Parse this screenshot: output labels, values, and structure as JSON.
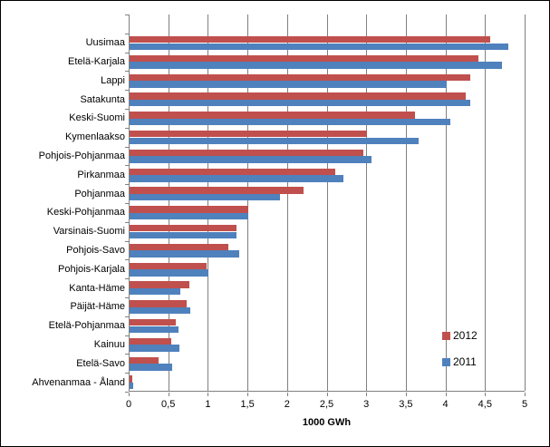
{
  "chart_data": {
    "type": "bar",
    "orientation": "horizontal",
    "title": "",
    "xlabel": "1000 GWh",
    "ylabel": "",
    "xlim": [
      0,
      5
    ],
    "grid": true,
    "legend_position": "inside-right",
    "categories": [
      "Uusimaa",
      "Etelä-Karjala",
      "Lappi",
      "Satakunta",
      "Keski-Suomi",
      "Kymenlaakso",
      "Pohjois-Pohjanmaa",
      "Pirkanmaa",
      "Pohjanmaa",
      "Keski-Pohjanmaa",
      "Varsinais-Suomi",
      "Pohjois-Savo",
      "Pohjois-Karjala",
      "Kanta-Häme",
      "Päijät-Häme",
      "Etelä-Pohjanmaa",
      "Kainuu",
      "Etelä-Savo",
      "Ahvenanmaa - Åland"
    ],
    "series": [
      {
        "name": "2012",
        "color": "#C0504D",
        "values": [
          4.55,
          4.4,
          4.3,
          4.25,
          3.6,
          3.0,
          2.95,
          2.6,
          2.2,
          1.5,
          1.35,
          1.25,
          0.97,
          0.75,
          0.72,
          0.58,
          0.53,
          0.37,
          0.03
        ]
      },
      {
        "name": "2011",
        "color": "#4F81BD",
        "values": [
          4.78,
          4.7,
          4.0,
          4.3,
          4.05,
          3.65,
          3.05,
          2.7,
          1.9,
          1.5,
          1.35,
          1.38,
          1.0,
          0.64,
          0.77,
          0.62,
          0.63,
          0.54,
          0.05
        ]
      }
    ],
    "x_ticks": [
      {
        "value": 0,
        "label": "0"
      },
      {
        "value": 0.5,
        "label": "0,5"
      },
      {
        "value": 1,
        "label": "1"
      },
      {
        "value": 1.5,
        "label": "1,5"
      },
      {
        "value": 2,
        "label": "2"
      },
      {
        "value": 2.5,
        "label": "2,5"
      },
      {
        "value": 3,
        "label": "3"
      },
      {
        "value": 3.5,
        "label": "3,5"
      },
      {
        "value": 4,
        "label": "4"
      },
      {
        "value": 4.5,
        "label": "4,5"
      },
      {
        "value": 5,
        "label": "5"
      }
    ]
  },
  "colors": {
    "grid": "#808080",
    "axis": "#808080",
    "border": "#000000",
    "background": "#FFFFFF",
    "text": "#000000"
  }
}
